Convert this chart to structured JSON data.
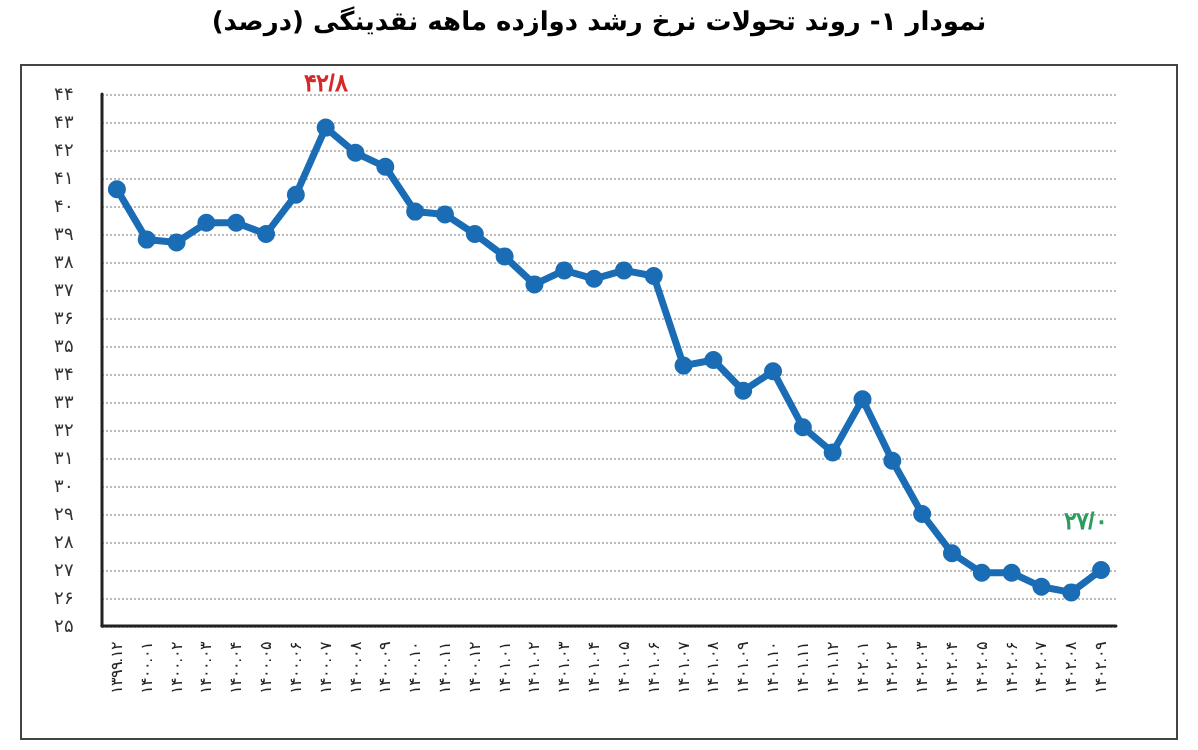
{
  "chart_data": {
    "type": "line",
    "title": "نمودار ۱- روند تحولات نرخ رشد دوازده ماهه نقدینگی (درصد)",
    "categories": [
      "۱۳۹۹.۱۲",
      "۱۴۰۰.۰۱",
      "۱۴۰۰.۰۲",
      "۱۴۰۰.۰۳",
      "۱۴۰۰.۰۴",
      "۱۴۰۰.۰۵",
      "۱۴۰۰.۰۶",
      "۱۴۰۰.۰۷",
      "۱۴۰۰.۰۸",
      "۱۴۰۰.۰۹",
      "۱۴۰۰.۱۰",
      "۱۴۰۰.۱۱",
      "۱۴۰۰.۱۲",
      "۱۴۰۱.۰۱",
      "۱۴۰۱.۰۲",
      "۱۴۰۱.۰۳",
      "۱۴۰۱.۰۴",
      "۱۴۰۱.۰۵",
      "۱۴۰۱.۰۶",
      "۱۴۰۱.۰۷",
      "۱۴۰۱.۰۸",
      "۱۴۰۱.۰۹",
      "۱۴۰۱.۱۰",
      "۱۴۰۱.۱۱",
      "۱۴۰۱.۱۲",
      "۱۴۰۲.۰۱",
      "۱۴۰۲.۰۲",
      "۱۴۰۲.۰۳",
      "۱۴۰۲.۰۴",
      "۱۴۰۲.۰۵",
      "۱۴۰۲.۰۶",
      "۱۴۰۲.۰۷",
      "۱۴۰۲.۰۸",
      "۱۴۰۲.۰۹"
    ],
    "series": [
      {
        "color": "#1a6db5",
        "values": [
          40.6,
          38.8,
          38.7,
          39.4,
          39.4,
          39.0,
          40.4,
          42.8,
          41.9,
          41.4,
          39.8,
          39.7,
          39.0,
          38.2,
          37.2,
          37.7,
          37.4,
          37.7,
          37.5,
          34.3,
          34.5,
          33.4,
          34.1,
          32.1,
          31.2,
          33.1,
          30.9,
          29.0,
          27.6,
          26.9,
          26.9,
          26.4,
          26.2,
          27.0
        ],
        "value_labels": [
          null,
          null,
          null,
          null,
          null,
          null,
          null,
          "۴۲/۸",
          null,
          null,
          null,
          null,
          null,
          null,
          null,
          null,
          null,
          null,
          null,
          null,
          null,
          null,
          null,
          null,
          null,
          null,
          null,
          null,
          null,
          null,
          null,
          null,
          null,
          "۲۷/۰"
        ]
      }
    ],
    "ylim": [
      25,
      44
    ],
    "yticks": [
      {
        "value": 25,
        "label": "۲۵"
      },
      {
        "value": 26,
        "label": "۲۶"
      },
      {
        "value": 27,
        "label": "۲۷"
      },
      {
        "value": 28,
        "label": "۲۸"
      },
      {
        "value": 29,
        "label": "۲۹"
      },
      {
        "value": 30,
        "label": "۳۰"
      },
      {
        "value": 31,
        "label": "۳۱"
      },
      {
        "value": 32,
        "label": "۳۲"
      },
      {
        "value": 33,
        "label": "۳۳"
      },
      {
        "value": 34,
        "label": "۳۴"
      },
      {
        "value": 35,
        "label": "۳۵"
      },
      {
        "value": 36,
        "label": "۳۶"
      },
      {
        "value": 37,
        "label": "۳۷"
      },
      {
        "value": 38,
        "label": "۳۸"
      },
      {
        "value": 39,
        "label": "۳۹"
      },
      {
        "value": 40,
        "label": "۴۰"
      },
      {
        "value": 41,
        "label": "۴۱"
      },
      {
        "value": 42,
        "label": "۴۲"
      },
      {
        "value": 43,
        "label": "۴۳"
      },
      {
        "value": 44,
        "label": "۴۴"
      }
    ],
    "grid": "y",
    "marker": "circle",
    "line_style": "solid"
  }
}
